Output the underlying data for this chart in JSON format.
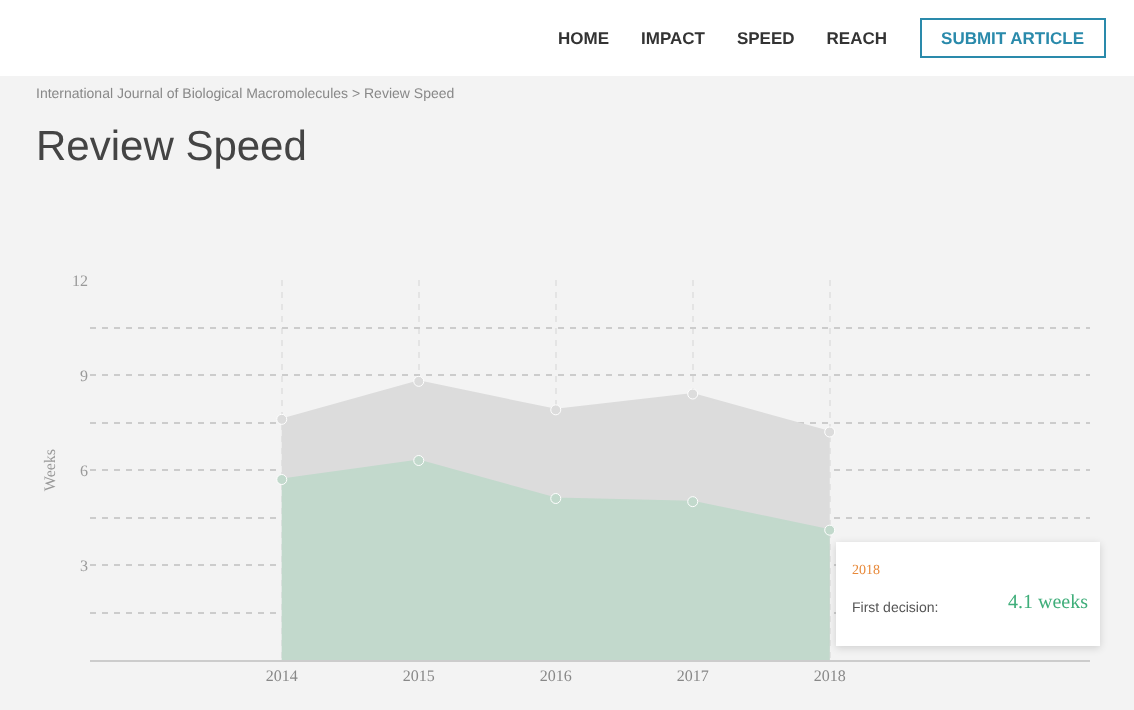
{
  "chart_data": {
    "type": "area",
    "title": "Review Speed",
    "subtitle": "International Journal of Biological Macromolecules > Review Speed",
    "ylabel": "Weeks",
    "categories": [
      "2014",
      "2015",
      "2016",
      "2017",
      "2018"
    ],
    "series": [
      {
        "color": "#dcdcdc",
        "values": [
          7.6,
          8.8,
          7.9,
          8.4,
          7.2
        ]
      },
      {
        "color": "#c2d9cc",
        "values": [
          5.7,
          6.3,
          5.1,
          5.0,
          4.1
        ]
      }
    ],
    "ylim": [
      0,
      12
    ],
    "yticks": [
      {
        "value": 1.5,
        "label": null
      },
      3,
      {
        "value": 4.5,
        "label": null
      },
      6,
      {
        "value": 7.5,
        "label": null
      },
      9,
      {
        "value": 10.5,
        "label": null
      },
      12
    ],
    "grid": true,
    "marker": "circle",
    "annotations": [
      "HOME",
      "IMPACT",
      "SPEED",
      "REACH",
      "SUBMIT ARTICLE",
      "2018",
      "First decision:",
      "4.1 weeks"
    ]
  }
}
